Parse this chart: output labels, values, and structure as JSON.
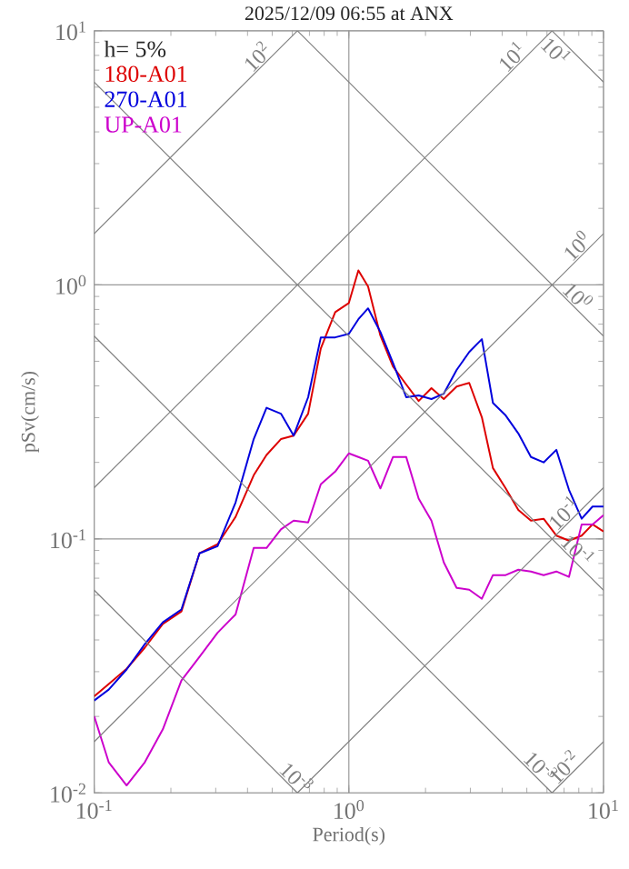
{
  "chart_data": {
    "type": "line",
    "title": "2025/12/09 06:55 at ANX",
    "xlabel": "Period(s)",
    "ylabel": "pSv(cm/s)",
    "log": "xy",
    "grid": true,
    "legend": "top left",
    "marker": "none",
    "line_style": "solid",
    "xlim": [
      0.1,
      10
    ],
    "ylim": [
      0.01,
      10
    ],
    "xticks": [
      {
        "value": 0.1,
        "label": "10$^{-1}$"
      },
      {
        "value": 1,
        "label": "10$^{0}$"
      },
      {
        "value": 10,
        "label": "10$^{1}$"
      }
    ],
    "yticks": [
      {
        "value": 0.01,
        "label": "10$^{-2}$"
      },
      {
        "value": 0.1,
        "label": "10$^{-1}$"
      },
      {
        "value": 1,
        "label": "10$^{0}$"
      },
      {
        "value": 10,
        "label": "10$^{1}$"
      }
    ],
    "x": [
      0.1,
      0.114,
      0.134,
      0.158,
      0.186,
      0.22,
      0.259,
      0.305,
      0.359,
      0.423,
      0.475,
      0.541,
      0.607,
      0.692,
      0.776,
      0.884,
      1.0,
      1.09,
      1.19,
      1.33,
      1.49,
      1.68,
      1.88,
      2.11,
      2.36,
      2.65,
      2.97,
      3.33,
      3.68,
      4.13,
      4.63,
      5.19,
      5.82,
      6.53,
      7.32,
      8.21,
      9.06,
      10
    ],
    "series": [
      {
        "name": "180-A01",
        "color": "#dd0000",
        "values": [
          0.024,
          0.0268,
          0.0308,
          0.0373,
          0.0462,
          0.0518,
          0.0877,
          0.0952,
          0.122,
          0.178,
          0.214,
          0.247,
          0.255,
          0.311,
          0.562,
          0.781,
          0.848,
          1.14,
          0.984,
          0.631,
          0.477,
          0.405,
          0.349,
          0.392,
          0.355,
          0.398,
          0.411,
          0.301,
          0.19,
          0.158,
          0.13,
          0.118,
          0.12,
          0.103,
          0.0984,
          0.103,
          0.114,
          0.107
        ]
      },
      {
        "name": "270-A01",
        "color": "#0000dd",
        "values": [
          0.0231,
          0.0255,
          0.0306,
          0.0385,
          0.0469,
          0.0527,
          0.0877,
          0.0936,
          0.139,
          0.247,
          0.328,
          0.311,
          0.255,
          0.361,
          0.621,
          0.621,
          0.641,
          0.732,
          0.808,
          0.652,
          0.493,
          0.361,
          0.367,
          0.355,
          0.373,
          0.462,
          0.544,
          0.611,
          0.343,
          0.306,
          0.26,
          0.21,
          0.2,
          0.224,
          0.156,
          0.12,
          0.134,
          0.134
        ]
      },
      {
        "name": "UP-A01",
        "color": "#cc00cc",
        "values": [
          0.02,
          0.0132,
          0.0107,
          0.0132,
          0.0178,
          0.0277,
          0.0343,
          0.0427,
          0.0504,
          0.0921,
          0.0921,
          0.109,
          0.118,
          0.116,
          0.164,
          0.184,
          0.217,
          0.21,
          0.203,
          0.158,
          0.21,
          0.21,
          0.144,
          0.118,
          0.0807,
          0.0641,
          0.0631,
          0.0581,
          0.072,
          0.072,
          0.0756,
          0.0744,
          0.072,
          0.0744,
          0.0708,
          0.114,
          0.114,
          0.124
        ]
      },
      {
        "color": "#808080",
        "x": [
          0.1,
          0.628
        ],
        "values": [
          1.59,
          10
        ]
      },
      {
        "color": "#808080",
        "x": [
          0.1,
          6.28
        ],
        "values": [
          0.159,
          10
        ]
      },
      {
        "color": "#808080",
        "x": [
          0.1,
          10
        ],
        "values": [
          0.0159,
          1.59
        ]
      },
      {
        "color": "#808080",
        "x": [
          0.628,
          10
        ],
        "values": [
          0.01,
          0.159
        ]
      },
      {
        "color": "#808080",
        "x": [
          6.28,
          10
        ],
        "values": [
          0.01,
          0.0159
        ]
      },
      {
        "color": "#808080",
        "x": [
          6.28,
          10
        ],
        "values": [
          10,
          6.28
        ]
      },
      {
        "color": "#808080",
        "x": [
          0.628,
          10
        ],
        "values": [
          10,
          0.628
        ]
      },
      {
        "color": "#808080",
        "x": [
          0.1,
          10
        ],
        "values": [
          6.28,
          0.0628
        ]
      },
      {
        "color": "#808080",
        "x": [
          0.1,
          6.28
        ],
        "values": [
          0.628,
          0.01
        ]
      },
      {
        "color": "#808080",
        "x": [
          0.1,
          0.628
        ],
        "values": [
          0.0628,
          0.01
        ]
      }
    ],
    "annotations": [
      "h= 5%",
      {
        "text": "10$^{2}$",
        "x": 0.5,
        "y": 7.95
      },
      {
        "text": "10$^{1}$",
        "x": 5,
        "y": 7.95
      },
      {
        "text": "10$^{1}$",
        "x": 7.5,
        "y": 8.37
      },
      {
        "text": "10$^{0}$",
        "x": 9,
        "y": 1.43
      },
      {
        "text": "10$^{0}$",
        "x": 7,
        "y": 0.897
      },
      {
        "text": "10$^{-1}$",
        "x": 8,
        "y": 0.127
      },
      {
        "text": "10$^{-1}$",
        "x": 7,
        "y": 0.0897
      },
      {
        "text": "10$^{-3}$",
        "x": 0.55,
        "y": 0.0114
      },
      {
        "text": "10$^{-3}$",
        "x": 5,
        "y": 0.0126
      },
      {
        "text": "10$^{-2}$",
        "x": 8,
        "y": 0.0127
      }
    ]
  }
}
